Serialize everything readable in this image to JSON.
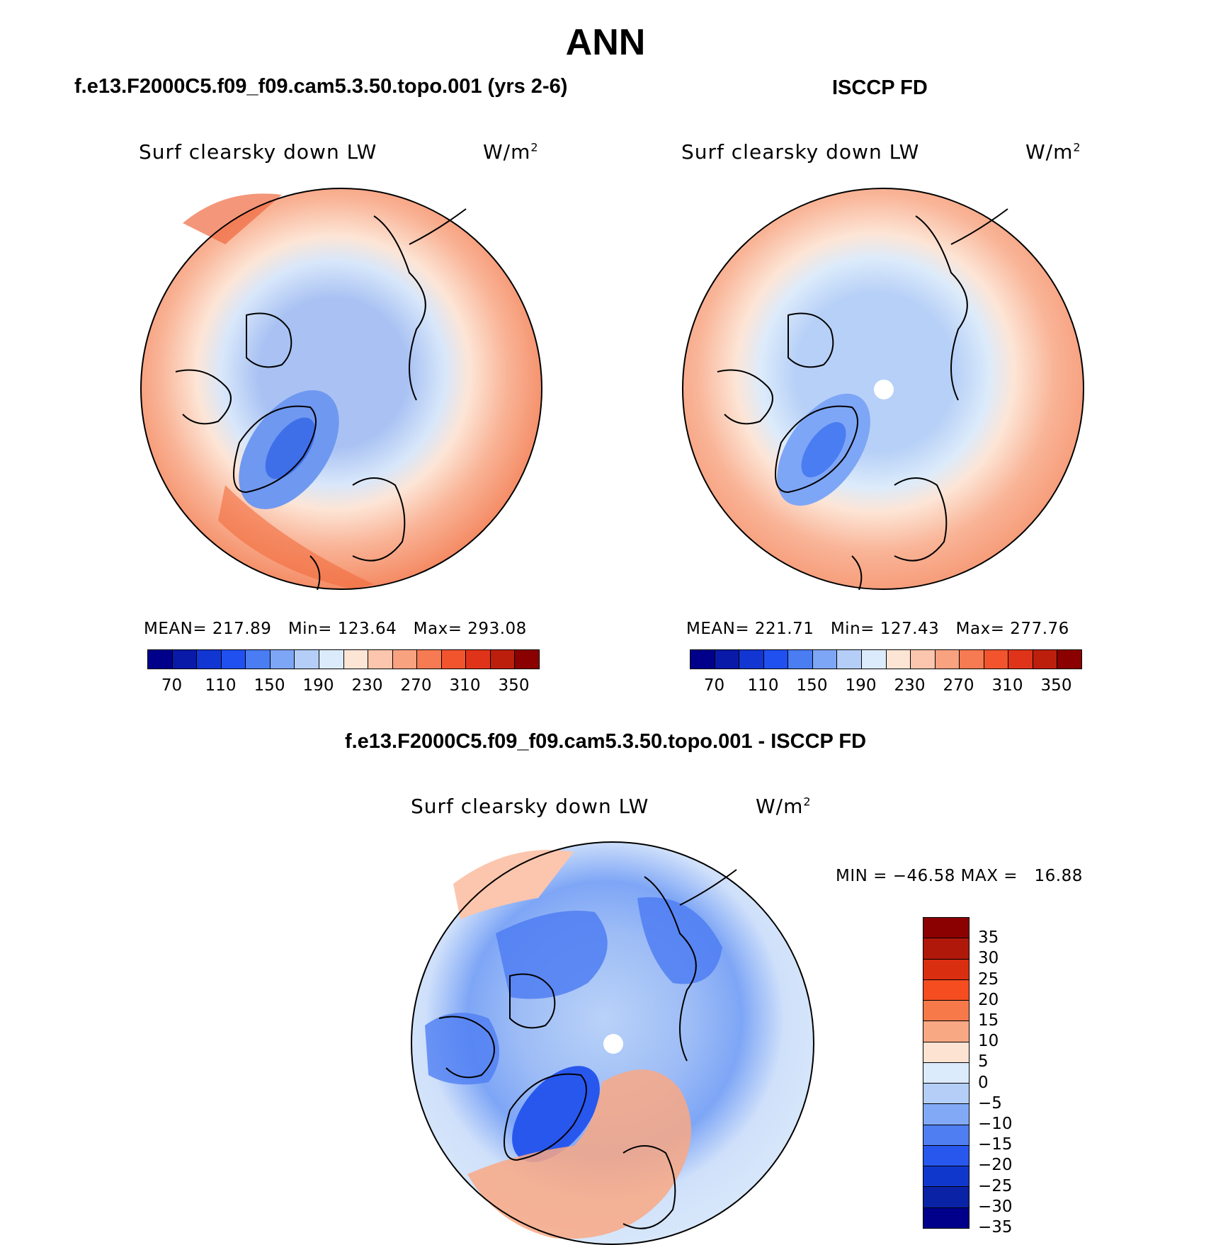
{
  "figure": {
    "title": "ANN",
    "left_panel_title": "f.e13.F2000C5.f09_f09.cam5.3.50.topo.001 (yrs 2-6)",
    "right_panel_title": "ISCCP FD",
    "diff_panel_title": "f.e13.F2000C5.f09_f09.cam5.3.50.topo.001 - ISCCP FD"
  },
  "panels": {
    "left": {
      "variable": "Surf clearsky down LW",
      "units_base": "W/m",
      "units_exp": "2",
      "stats": {
        "mean_label": "MEAN=",
        "mean": "217.89",
        "min_label": "Min=",
        "min": "123.64",
        "max_label": "Max=",
        "max": "293.08"
      }
    },
    "right": {
      "variable": "Surf clearsky down LW",
      "units_base": "W/m",
      "units_exp": "2",
      "stats": {
        "mean_label": "MEAN=",
        "mean": "221.71",
        "min_label": "Min=",
        "min": "127.43",
        "max_label": "Max=",
        "max": "277.76"
      }
    },
    "diff": {
      "variable": "Surf clearsky down LW",
      "units_base": "W/m",
      "units_exp": "2",
      "minmax": "MIN = −46.58 MAX =   16.88"
    }
  },
  "colorbar_abs": {
    "colors": [
      "#00008b",
      "#0a1aa8",
      "#1236d2",
      "#2050f0",
      "#4a7cf2",
      "#7ea6f6",
      "#b4cef8",
      "#dcebfb",
      "#fde5d6",
      "#fbc6ad",
      "#f9a27f",
      "#f67a52",
      "#f2542e",
      "#e0341a",
      "#bd1f0d",
      "#8b0000"
    ],
    "tick_labels": [
      "70",
      "110",
      "150",
      "190",
      "230",
      "270",
      "310",
      "350"
    ]
  },
  "colorbar_diff": {
    "colors": [
      "#8b0000",
      "#b0180a",
      "#d92f10",
      "#f54d20",
      "#f7794a",
      "#f9a884",
      "#fde3d2",
      "#dcebfb",
      "#b4cef8",
      "#82a9f6",
      "#4f7ef2",
      "#2857ee",
      "#1037cc",
      "#0a22a6",
      "#00008b"
    ],
    "tick_labels": [
      "35",
      "30",
      "25",
      "20",
      "15",
      "10",
      "5",
      "0",
      "−5",
      "−10",
      "−15",
      "−20",
      "−25",
      "−30",
      "−35"
    ]
  }
}
